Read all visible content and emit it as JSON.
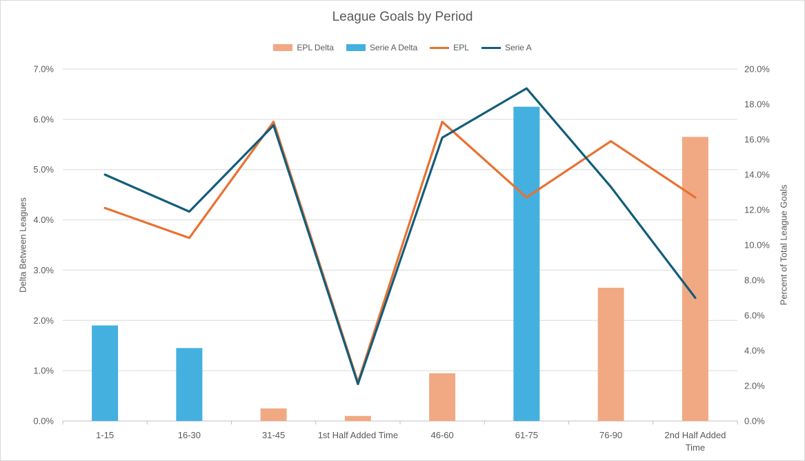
{
  "chart_data": {
    "type": "bar",
    "title": "League Goals by Period",
    "categories": [
      "1-15",
      "16-30",
      "31-45",
      "1st Half Added Time",
      "46-60",
      "61-75",
      "76-90",
      "2nd Half Added Time"
    ],
    "category_label_lines": [
      [
        "1-15"
      ],
      [
        "16-30"
      ],
      [
        "31-45"
      ],
      [
        "1st Half Added Time"
      ],
      [
        "46-60"
      ],
      [
        "61-75"
      ],
      [
        "76-90"
      ],
      [
        "2nd Half Added",
        "Time"
      ]
    ],
    "ylabel": "Delta Between Leagues",
    "y2label": "Percent of Total League Goals",
    "ylim": [
      0,
      0.07
    ],
    "y2lim": [
      0,
      0.2
    ],
    "yticks": [
      "0.0%",
      "1.0%",
      "2.0%",
      "3.0%",
      "4.0%",
      "5.0%",
      "6.0%",
      "7.0%"
    ],
    "y2ticks": [
      "0.0%",
      "2.0%",
      "4.0%",
      "6.0%",
      "8.0%",
      "10.0%",
      "12.0%",
      "14.0%",
      "16.0%",
      "18.0%",
      "20.0%"
    ],
    "legend_position": "top",
    "series": [
      {
        "name": "EPL Delta",
        "type": "bar",
        "axis": "primary",
        "color": "#f1a983",
        "values": [
          0,
          0,
          0.0025,
          0.001,
          0.0095,
          0,
          0.0265,
          0.0565
        ]
      },
      {
        "name": "Serie A Delta",
        "type": "bar",
        "axis": "primary",
        "color": "#44b0e0",
        "values": [
          0.019,
          0.0145,
          0,
          0,
          0,
          0.0625,
          0,
          0
        ]
      },
      {
        "name": "EPL",
        "type": "line",
        "axis": "secondary",
        "color": "#e97132",
        "values": [
          0.121,
          0.104,
          0.17,
          0.022,
          0.17,
          0.127,
          0.159,
          0.127
        ]
      },
      {
        "name": "Serie A",
        "type": "line",
        "axis": "secondary",
        "color": "#125d7a",
        "values": [
          0.14,
          0.119,
          0.168,
          0.021,
          0.161,
          0.189,
          0.133,
          0.07
        ]
      }
    ]
  }
}
